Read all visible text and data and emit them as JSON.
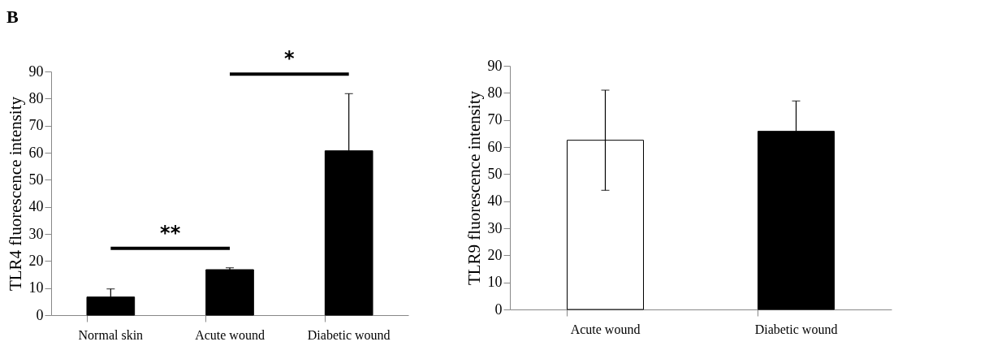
{
  "chart_data": [
    {
      "type": "bar",
      "title": "B",
      "categories": [
        "Normal skin",
        "Acute wound",
        "Diabetic wound"
      ],
      "values": [
        6.7,
        16.8,
        60.7
      ],
      "errors": [
        [
          6.7,
          9.7
        ],
        [
          16.8,
          17.5
        ],
        [
          60.7,
          81.8
        ]
      ],
      "colors": [
        "#000000",
        "#000000",
        "#000000"
      ],
      "ylabel": "TLR4 fluorescence intensity",
      "ylim": [
        0,
        90
      ],
      "yticks": [
        0,
        10,
        20,
        30,
        40,
        50,
        60,
        70,
        80,
        90
      ],
      "annotations": [
        "**",
        "*"
      ]
    },
    {
      "type": "bar",
      "categories": [
        "Acute wound",
        "Diabetic wound"
      ],
      "values": [
        62.5,
        65.8
      ],
      "errors": [
        18.5,
        [
          65.8,
          77
        ]
      ],
      "colors": [
        "#ffffff",
        "#000000"
      ],
      "ylabel": "TLR9 fluorescence intensity",
      "ylim": [
        0,
        90
      ],
      "yticks": [
        0,
        10,
        20,
        30,
        40,
        50,
        60,
        70,
        80,
        90
      ]
    }
  ]
}
